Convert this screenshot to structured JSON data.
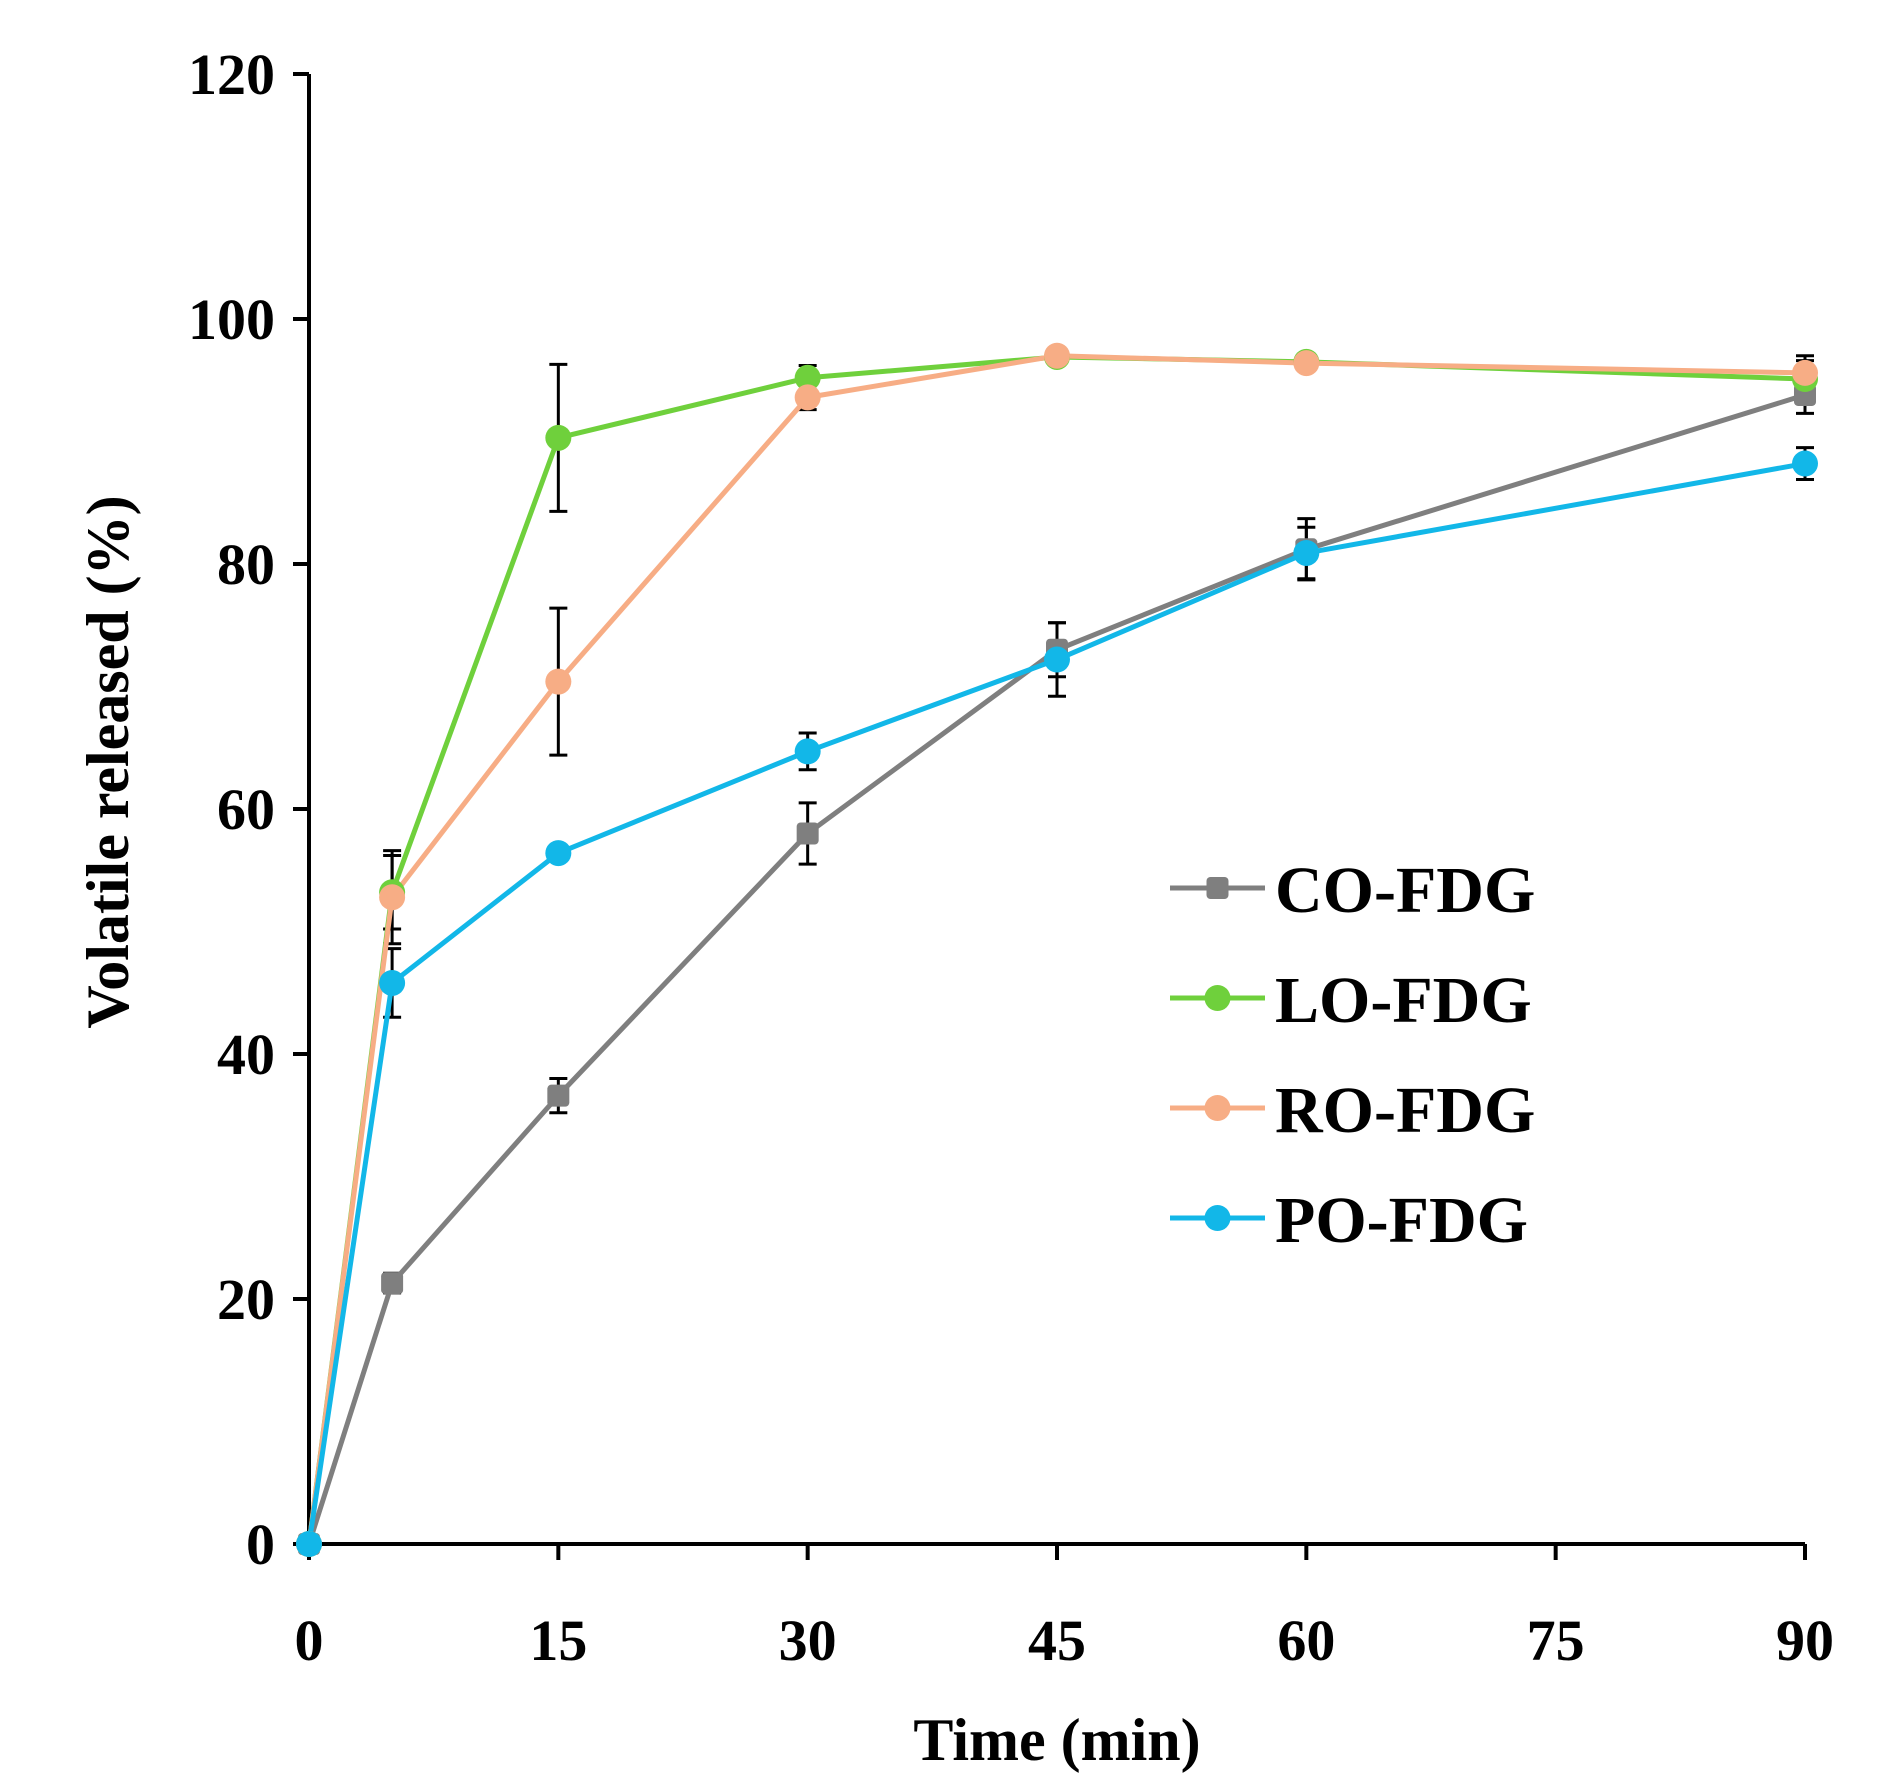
{
  "chart_data": {
    "type": "line",
    "title": "",
    "xlabel": "Time (min)",
    "ylabel": "Volatile released (%)",
    "xlim": [
      0,
      90
    ],
    "ylim": [
      0,
      120
    ],
    "x_ticks": [
      0,
      15,
      30,
      45,
      60,
      75,
      90
    ],
    "y_ticks": [
      0,
      20,
      40,
      60,
      80,
      100,
      120
    ],
    "x_tick_labels": [
      "0",
      "15",
      "30",
      "45",
      "60",
      "75",
      "90"
    ],
    "y_tick_labels": [
      "0",
      "20",
      "40",
      "60",
      "80",
      "100",
      "120"
    ],
    "grid": false,
    "legend_position": "right-center",
    "x": [
      0,
      5,
      15,
      30,
      45,
      60,
      90
    ],
    "series": [
      {
        "name": "CO-FDG",
        "color": "#7f7f7f",
        "marker": "square",
        "values": [
          0,
          21.3,
          36.6,
          58,
          73,
          81.2,
          93.8
        ],
        "errors": [
          0,
          0.8,
          1.4,
          2.5,
          2.2,
          2.5,
          1.5
        ]
      },
      {
        "name": "LO-FDG",
        "color": "#6fd03c",
        "marker": "circle",
        "values": [
          0,
          53.2,
          90.3,
          95.2,
          96.9,
          96.5,
          95.1
        ],
        "errors": [
          0,
          3,
          6,
          1,
          0.4,
          0.5,
          1.5
        ]
      },
      {
        "name": "RO-FDG",
        "color": "#f7ad85",
        "marker": "circle",
        "values": [
          0,
          52.8,
          70.4,
          93.6,
          97,
          96.4,
          95.6
        ],
        "errors": [
          0,
          3.8,
          6,
          1,
          0.4,
          0.4,
          1.4
        ]
      },
      {
        "name": "PO-FDG",
        "color": "#12b7e8",
        "marker": "circle",
        "values": [
          0,
          45.8,
          56.4,
          64.7,
          72.2,
          80.9,
          88.2
        ],
        "errors": [
          0,
          2.8,
          0,
          1.5,
          3,
          2.1,
          1.3
        ]
      }
    ]
  }
}
